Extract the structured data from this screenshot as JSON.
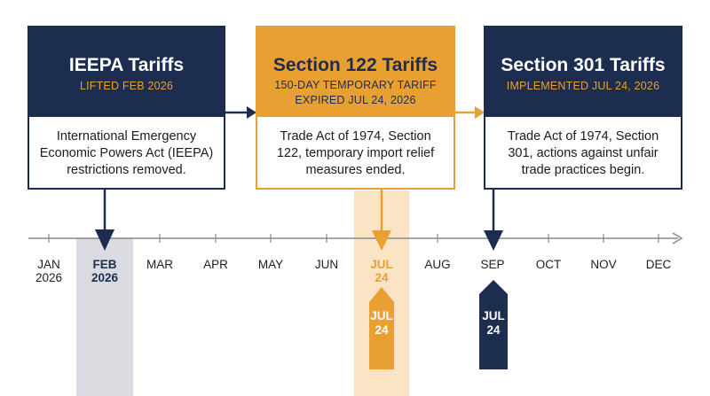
{
  "colors": {
    "navy": "#1d2d50",
    "gold": "#e8a032",
    "gold_light": "#fbe4c4",
    "gray_band": "#d9dbe0",
    "axis": "#8a8a8a"
  },
  "cards": [
    {
      "title": "IEEPA Tariffs",
      "subtitle": [
        "LIFTED FEB 2026"
      ],
      "body": [
        "International Emergency",
        "Economic Powers Act (IEEPA)",
        "restrictions removed."
      ]
    },
    {
      "title": "Section 122 Tariffs",
      "subtitle": [
        "150-DAY TEMPORARY TARIFF",
        "EXPIRED JUL 24, 2026"
      ],
      "body": [
        "Trade Act of 1974, Section",
        "122, temporary import relief",
        "measures ended."
      ]
    },
    {
      "title": "Section 301 Tariffs",
      "subtitle": [
        "IMPLEMENTED JUL 24, 2026"
      ],
      "body": [
        "Trade Act of 1974, Section",
        "301, actions against unfair",
        "trade practices begin."
      ]
    }
  ],
  "timeline": {
    "months": [
      [
        "JAN",
        "2026"
      ],
      [
        "FEB",
        "2026"
      ],
      [
        "MAR"
      ],
      [
        "APR"
      ],
      [
        "MAY"
      ],
      [
        "JUN"
      ],
      [
        "JUL",
        "24"
      ],
      [
        "AUG"
      ],
      [
        "SEP"
      ],
      [
        "OCT"
      ],
      [
        "NOV"
      ],
      [
        "DEC"
      ]
    ]
  },
  "markers": {
    "gold": [
      "JUL",
      "24"
    ],
    "navy": [
      "JUL",
      "24"
    ]
  }
}
